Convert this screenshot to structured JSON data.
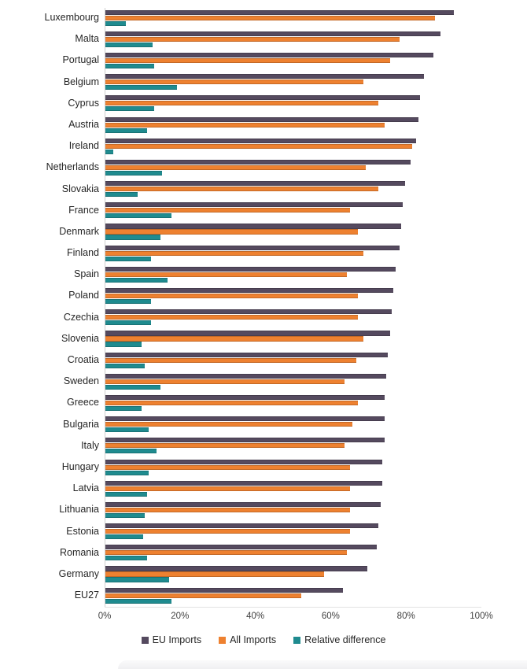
{
  "chart_data": {
    "type": "bar",
    "orientation": "horizontal",
    "title": "",
    "xlabel": "",
    "ylabel": "",
    "xlim": [
      0,
      100
    ],
    "grid": false,
    "legend_position": "bottom",
    "x_ticks": [
      "0%",
      "20%",
      "40%",
      "60%",
      "80%",
      "100%"
    ],
    "categories": [
      "Luxembourg",
      "Malta",
      "Portugal",
      "Belgium",
      "Cyprus",
      "Austria",
      "Ireland",
      "Netherlands",
      "Slovakia",
      "France",
      "Denmark",
      "Finland",
      "Spain",
      "Poland",
      "Czechia",
      "Slovenia",
      "Croatia",
      "Sweden",
      "Greece",
      "Bulgaria",
      "Italy",
      "Hungary",
      "Latvia",
      "Lithuania",
      "Estonia",
      "Romania",
      "Germany",
      "EU27"
    ],
    "series": [
      {
        "name": "EU Imports",
        "color": "#554A5F",
        "values": [
          92.5,
          89,
          87,
          84.5,
          83.5,
          83,
          82.5,
          81,
          79.5,
          79,
          78.5,
          78,
          77,
          76.5,
          76,
          75.5,
          75,
          74.5,
          74,
          74,
          74,
          73.5,
          73.5,
          73,
          72.5,
          72,
          69.5,
          63
        ]
      },
      {
        "name": "All Imports",
        "color": "#EE8130",
        "values": [
          87.5,
          78,
          75.5,
          68.5,
          72.5,
          74,
          81.5,
          69,
          72.5,
          65,
          67,
          68.5,
          64,
          67,
          67,
          68.5,
          66.5,
          63.5,
          67,
          65.5,
          63.5,
          65,
          65,
          65,
          65,
          64,
          58,
          52
        ]
      },
      {
        "name": "Relative difference",
        "color": "#1F8B8F",
        "values": [
          5.5,
          12.5,
          13,
          19,
          13,
          11,
          2,
          15,
          8.5,
          17.5,
          14.5,
          12,
          16.5,
          12,
          12,
          9.5,
          10.5,
          14.5,
          9.5,
          11.5,
          13.5,
          11.5,
          11,
          10.5,
          10,
          11,
          17,
          17.5
        ]
      }
    ],
    "axis_line_color": "#cfcfcf",
    "tick_label_color": "#404040",
    "category_label_color": "#262626"
  }
}
